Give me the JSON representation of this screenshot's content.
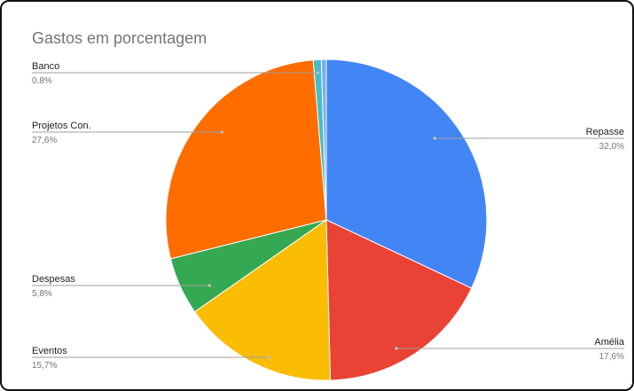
{
  "chart_data": {
    "type": "pie",
    "title": "Gastos em porcentagem",
    "legend": "none",
    "slices": [
      {
        "label": "Repasse",
        "value": 32.0,
        "display": "32,0%",
        "color": "#4285f4"
      },
      {
        "label": "Amélia",
        "value": 17.6,
        "display": "17,6%",
        "color": "#ea4335"
      },
      {
        "label": "Eventos",
        "value": 15.7,
        "display": "15,7%",
        "color": "#fbbc04"
      },
      {
        "label": "Despesas",
        "value": 5.8,
        "display": "5,8%",
        "color": "#34a853"
      },
      {
        "label": "Projetos Con.",
        "value": 27.6,
        "display": "27,6%",
        "color": "#ff6d01"
      },
      {
        "label": "Banco",
        "value": 0.8,
        "display": "0,8%",
        "color": "#46bdc6"
      },
      {
        "label": "",
        "value": 0.5,
        "display": "",
        "color": "#7baaf7"
      }
    ]
  }
}
